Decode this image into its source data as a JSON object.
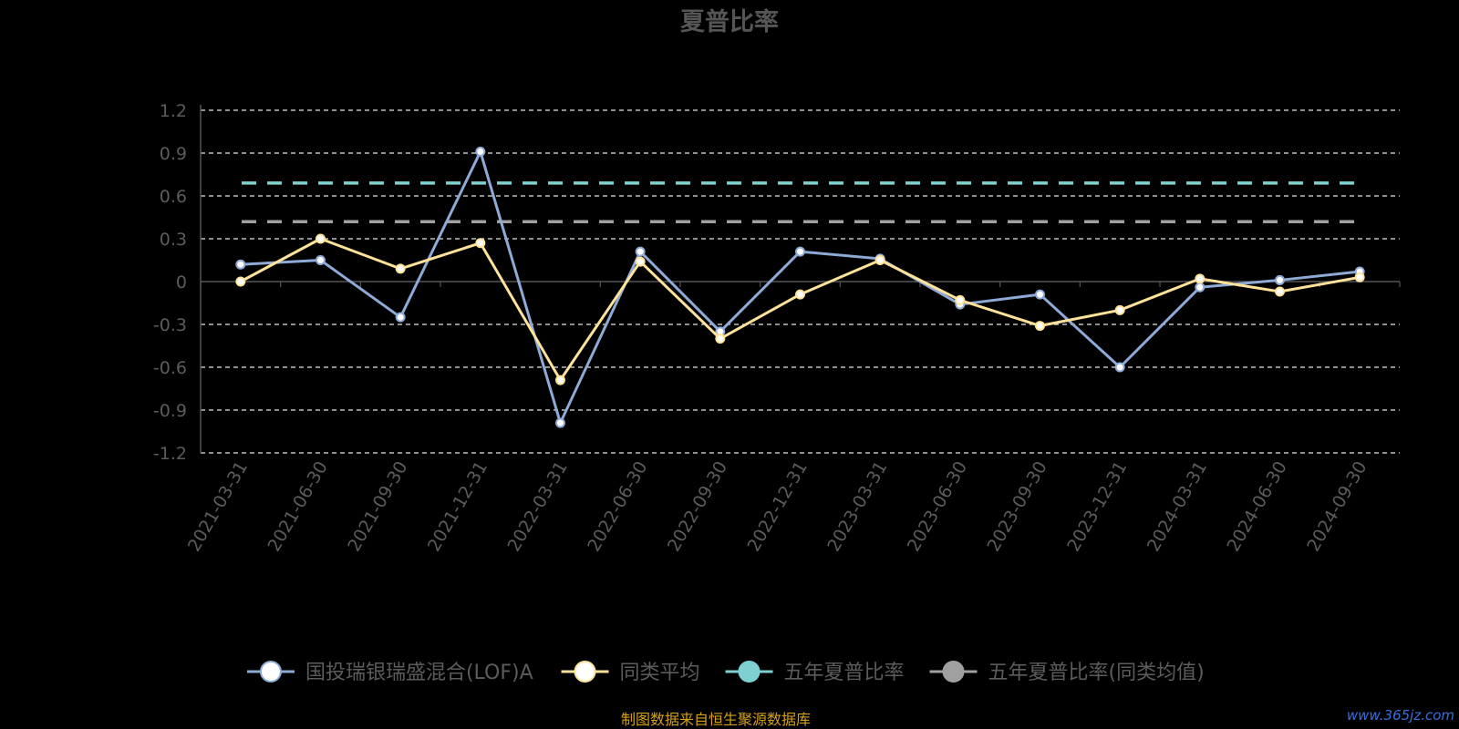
{
  "chart_data": {
    "type": "line",
    "title": "夏普比率",
    "categories": [
      "2021-03-31",
      "2021-06-30",
      "2021-09-30",
      "2021-12-31",
      "2022-03-31",
      "2022-06-30",
      "2022-09-30",
      "2022-12-31",
      "2023-03-31",
      "2023-06-30",
      "2023-09-30",
      "2023-12-31",
      "2024-03-31",
      "2024-06-30",
      "2024-09-30"
    ],
    "ylim": [
      -1.2,
      1.2
    ],
    "yticks": [
      "1.2",
      "0.9",
      "0.6",
      "0.3",
      "0",
      "-0.3",
      "-0.6",
      "-0.9",
      "-1.2"
    ],
    "grid": true,
    "legend_position": "bottom",
    "series": [
      {
        "name": "国投瑞银瑞盛混合(LOF)A",
        "color": "#8eaad6",
        "values": [
          0.12,
          0.15,
          -0.25,
          0.91,
          -0.99,
          0.21,
          -0.35,
          0.21,
          0.16,
          -0.16,
          -0.09,
          -0.6,
          -0.04,
          0.01,
          0.07
        ]
      },
      {
        "name": "同类平均",
        "color": "#ffe29a",
        "values": [
          0.0,
          0.3,
          0.09,
          0.27,
          -0.69,
          0.14,
          -0.4,
          -0.09,
          0.15,
          -0.13,
          -0.31,
          -0.2,
          0.02,
          -0.07,
          0.03
        ]
      },
      {
        "name": "五年夏普比率",
        "color": "#7fd1d1",
        "dashed": true,
        "value": 0.69
      },
      {
        "name": "五年夏普比率(同类均值)",
        "color": "#a0a0a0",
        "dashed": true,
        "value": 0.42
      }
    ]
  },
  "legend": {
    "items": [
      {
        "label": "国投瑞银瑞盛混合(LOF)A",
        "color": "#8eaad6",
        "marker": "#ffffff"
      },
      {
        "label": "同类平均",
        "color": "#ffe29a",
        "marker": "#ffffff"
      },
      {
        "label": "五年夏普比率",
        "color": "#7fd1d1",
        "marker": "#7fd1d1"
      },
      {
        "label": "五年夏普比率(同类均值)",
        "color": "#a0a0a0",
        "marker": "#a0a0a0"
      }
    ]
  },
  "footer": {
    "source": "制图数据来自恒生聚源数据库",
    "watermark": "www.365jz.com"
  }
}
